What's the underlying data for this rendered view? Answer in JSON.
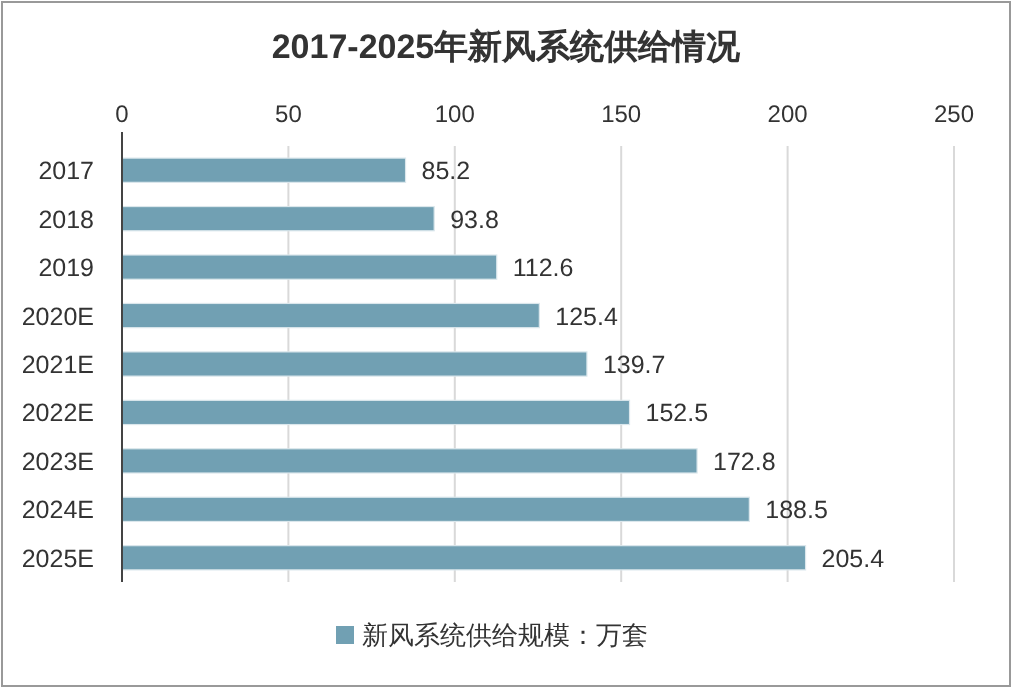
{
  "chart_data": {
    "type": "bar",
    "orientation": "horizontal",
    "title": "2017-2025年新风系统供给情况",
    "categories": [
      "2017",
      "2018",
      "2019",
      "2020E",
      "2021E",
      "2022E",
      "2023E",
      "2024E",
      "2025E"
    ],
    "series": [
      {
        "name": "新风系统供给规模：万套",
        "color": "#71a0b3",
        "values": [
          85.2,
          93.8,
          112.6,
          125.4,
          139.7,
          152.5,
          172.8,
          188.5,
          205.4
        ]
      }
    ],
    "xlim": [
      0,
      250
    ],
    "xticks": [
      0,
      50,
      100,
      150,
      200,
      250
    ],
    "grid": "x",
    "data_labels": true,
    "legend": "bottom"
  }
}
